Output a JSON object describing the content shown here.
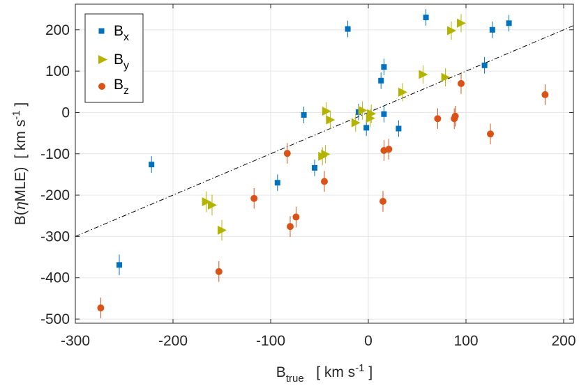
{
  "chart_data": {
    "type": "scatter",
    "title": "",
    "xlabel": {
      "main": "B",
      "sub": "true",
      "unit": "[ km s",
      "sup": "-1",
      "close": " ]"
    },
    "ylabel": {
      "main": "B(",
      "greek": "η",
      "rest": "MLE)",
      "unit": "[ km s",
      "sup": "-1",
      "close": " ]"
    },
    "xlim": [
      -300,
      210
    ],
    "ylim": [
      -510,
      262
    ],
    "xticks": [
      -300,
      -200,
      -100,
      0,
      100,
      200
    ],
    "yticks": [
      -500,
      -400,
      -300,
      -200,
      -100,
      0,
      100,
      200
    ],
    "grid": true,
    "legend_position": "top-left",
    "reference_line": {
      "style": "dash-dot",
      "slope": 1,
      "intercept": 0
    },
    "series": [
      {
        "name": "B",
        "sub": "x",
        "marker": "square",
        "color": "#0072bd",
        "points": [
          {
            "x": 144,
            "y": 216,
            "err": 20
          },
          {
            "x": 127,
            "y": 200,
            "err": 20
          },
          {
            "x": 119,
            "y": 114,
            "err": 20
          },
          {
            "x": 59,
            "y": 230,
            "err": 20
          },
          {
            "x": 31,
            "y": -39,
            "err": 20
          },
          {
            "x": 16,
            "y": 110,
            "err": 20
          },
          {
            "x": 16,
            "y": -4,
            "err": 20
          },
          {
            "x": 13,
            "y": 77,
            "err": 20
          },
          {
            "x": -2,
            "y": -37,
            "err": 20
          },
          {
            "x": -10,
            "y": 1,
            "err": 20
          },
          {
            "x": -21,
            "y": 202,
            "err": 20
          },
          {
            "x": -55,
            "y": -134,
            "err": 20
          },
          {
            "x": -66,
            "y": -6,
            "err": 20
          },
          {
            "x": -93,
            "y": -170,
            "err": 20
          },
          {
            "x": -222,
            "y": -126,
            "err": 20
          },
          {
            "x": -255,
            "y": -369,
            "err": 25
          }
        ]
      },
      {
        "name": "B",
        "sub": "y",
        "marker": "triangle-right",
        "color": "#b4b400",
        "points": [
          {
            "x": 95,
            "y": 216,
            "err": 22
          },
          {
            "x": 85,
            "y": 198,
            "err": 22
          },
          {
            "x": 79,
            "y": 85,
            "err": 22
          },
          {
            "x": 56,
            "y": 92,
            "err": 22
          },
          {
            "x": 35,
            "y": 49,
            "err": 22
          },
          {
            "x": 3,
            "y": -3,
            "err": 22
          },
          {
            "x": 2,
            "y": -14,
            "err": 22
          },
          {
            "x": -6,
            "y": 5,
            "err": 22
          },
          {
            "x": -13,
            "y": -25,
            "err": 22
          },
          {
            "x": -39,
            "y": -18,
            "err": 22
          },
          {
            "x": -43,
            "y": 3,
            "err": 22
          },
          {
            "x": -44,
            "y": -101,
            "err": 22
          },
          {
            "x": -47,
            "y": -106,
            "err": 22
          },
          {
            "x": -150,
            "y": -285,
            "err": 25
          },
          {
            "x": -160,
            "y": -224,
            "err": 25
          },
          {
            "x": -166,
            "y": -216,
            "err": 25
          }
        ]
      },
      {
        "name": "B",
        "sub": "z",
        "marker": "circle",
        "color": "#d95319",
        "points": [
          {
            "x": 181,
            "y": 43,
            "err": 25
          },
          {
            "x": 125,
            "y": -52,
            "err": 25
          },
          {
            "x": 95,
            "y": 70,
            "err": 25
          },
          {
            "x": 89,
            "y": -9,
            "err": 25
          },
          {
            "x": 88,
            "y": -15,
            "err": 25
          },
          {
            "x": 71,
            "y": -15,
            "err": 25
          },
          {
            "x": 21,
            "y": -89,
            "err": 25
          },
          {
            "x": 16,
            "y": -92,
            "err": 25
          },
          {
            "x": 15,
            "y": -215,
            "err": 25
          },
          {
            "x": -45,
            "y": -167,
            "err": 25
          },
          {
            "x": -74,
            "y": -253,
            "err": 25
          },
          {
            "x": -80,
            "y": -276,
            "err": 25
          },
          {
            "x": -83,
            "y": -99,
            "err": 25
          },
          {
            "x": -117,
            "y": -208,
            "err": 25
          },
          {
            "x": -153,
            "y": -385,
            "err": 25
          },
          {
            "x": -274,
            "y": -473,
            "err": 25
          }
        ]
      }
    ]
  }
}
